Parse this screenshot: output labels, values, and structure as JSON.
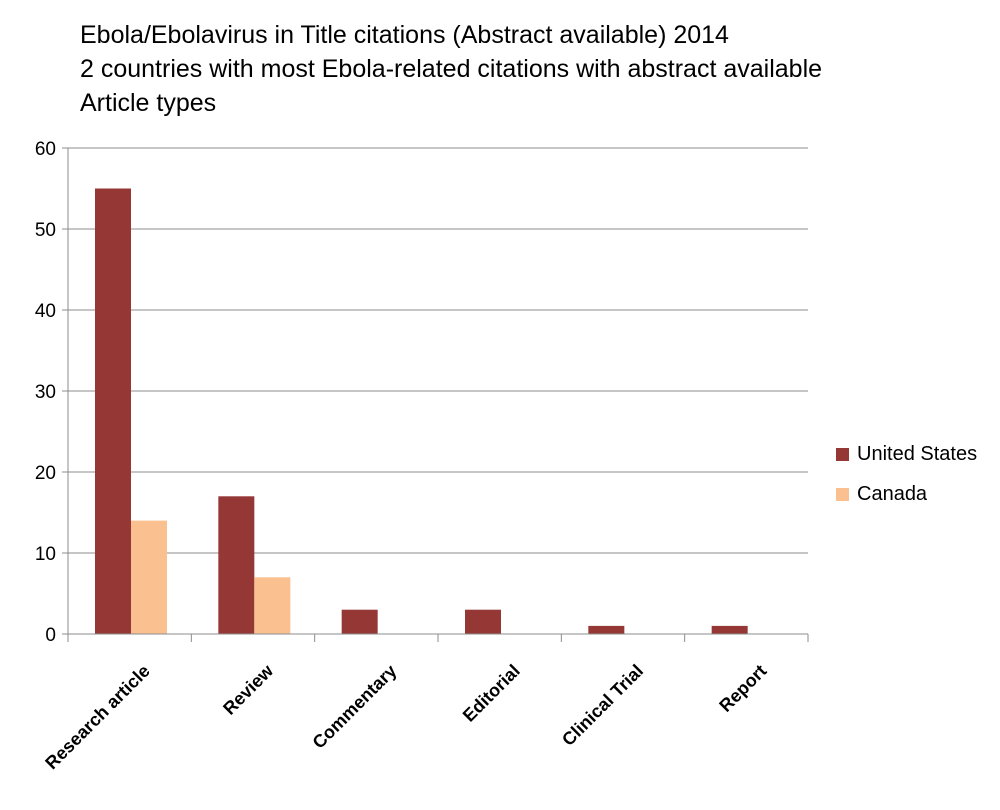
{
  "chart_data": {
    "type": "bar",
    "title_lines": [
      "Ebola/Ebolavirus in Title citations (Abstract available) 2014",
      "2 countries with most Ebola-related citations with abstract available",
      "Article types"
    ],
    "categories": [
      "Research article",
      "Review",
      "Commentary",
      "Editorial",
      "Clinical Trial",
      "Report"
    ],
    "series": [
      {
        "name": "United States",
        "color": "#953735",
        "values": [
          55,
          17,
          3,
          3,
          1,
          1
        ]
      },
      {
        "name": "Canada",
        "color": "#fac090",
        "values": [
          14,
          7,
          0,
          0,
          0,
          0
        ]
      }
    ],
    "yticks": [
      0,
      10,
      20,
      30,
      40,
      50,
      60
    ],
    "ylim": [
      0,
      60
    ],
    "grid": true,
    "legend_position": "right"
  }
}
